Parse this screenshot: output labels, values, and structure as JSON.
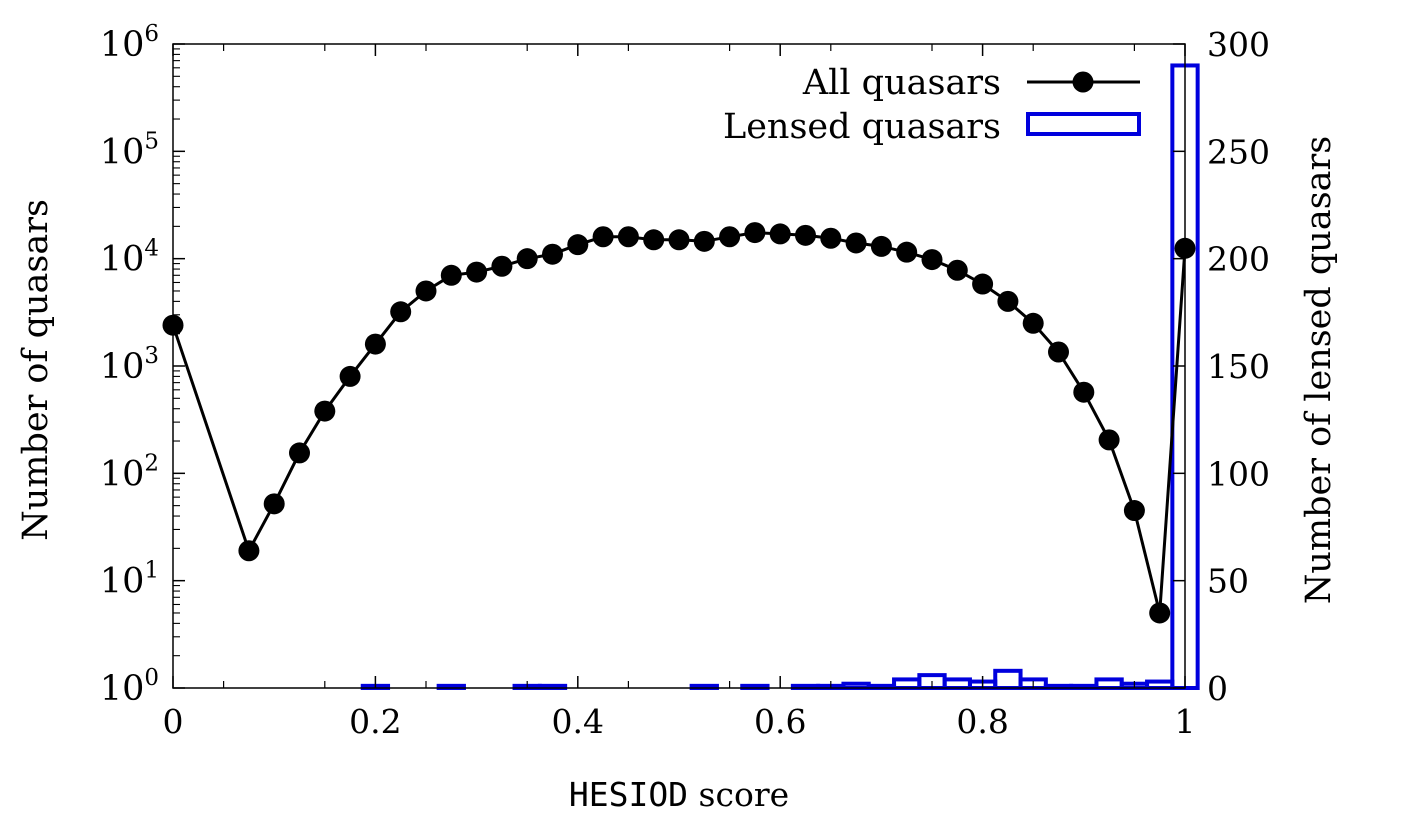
{
  "chart_data": {
    "type": "line+histogram",
    "xlabel_prefix": "HESIOD",
    "xlabel_suffix": " score",
    "ylabel_left": "Number of quasars",
    "ylabel_right": "Number of lensed quasars",
    "xlim": [
      0,
      1
    ],
    "ylim_left_log10": [
      0,
      6
    ],
    "ylim_right": [
      0,
      300
    ],
    "x_ticks": [
      {
        "value": 0,
        "label": "0"
      },
      {
        "value": 0.2,
        "label": "0.2"
      },
      {
        "value": 0.4,
        "label": "0.4"
      },
      {
        "value": 0.6,
        "label": "0.6"
      },
      {
        "value": 0.8,
        "label": "0.8"
      },
      {
        "value": 1,
        "label": "1"
      }
    ],
    "y_left_ticks": [
      {
        "exp": 0,
        "base": "10",
        "sup": "0"
      },
      {
        "exp": 1,
        "base": "10",
        "sup": "1"
      },
      {
        "exp": 2,
        "base": "10",
        "sup": "2"
      },
      {
        "exp": 3,
        "base": "10",
        "sup": "3"
      },
      {
        "exp": 4,
        "base": "10",
        "sup": "4"
      },
      {
        "exp": 5,
        "base": "10",
        "sup": "5"
      },
      {
        "exp": 6,
        "base": "10",
        "sup": "6"
      }
    ],
    "y_right_ticks": [
      {
        "value": 0,
        "label": "0"
      },
      {
        "value": 50,
        "label": "50"
      },
      {
        "value": 100,
        "label": "100"
      },
      {
        "value": 150,
        "label": "150"
      },
      {
        "value": 200,
        "label": "200"
      },
      {
        "value": 250,
        "label": "250"
      },
      {
        "value": 300,
        "label": "300"
      }
    ],
    "legend": {
      "position": "top-right",
      "all_label": "All quasars",
      "lensed_label": "Lensed quasars"
    },
    "colors": {
      "all": "#000000",
      "lensed": "#0000dd"
    },
    "series_all": {
      "name": "All quasars",
      "points": [
        {
          "x": 0.0,
          "y": 2400
        },
        {
          "x": 0.075,
          "y": 19
        },
        {
          "x": 0.1,
          "y": 52
        },
        {
          "x": 0.125,
          "y": 155
        },
        {
          "x": 0.15,
          "y": 380
        },
        {
          "x": 0.175,
          "y": 800
        },
        {
          "x": 0.2,
          "y": 1600
        },
        {
          "x": 0.225,
          "y": 3200
        },
        {
          "x": 0.25,
          "y": 5000
        },
        {
          "x": 0.275,
          "y": 7000
        },
        {
          "x": 0.3,
          "y": 7500
        },
        {
          "x": 0.325,
          "y": 8500
        },
        {
          "x": 0.35,
          "y": 10000
        },
        {
          "x": 0.375,
          "y": 11000
        },
        {
          "x": 0.4,
          "y": 13500
        },
        {
          "x": 0.425,
          "y": 16000
        },
        {
          "x": 0.45,
          "y": 16000
        },
        {
          "x": 0.475,
          "y": 15000
        },
        {
          "x": 0.5,
          "y": 15000
        },
        {
          "x": 0.525,
          "y": 14500
        },
        {
          "x": 0.55,
          "y": 16000
        },
        {
          "x": 0.575,
          "y": 17500
        },
        {
          "x": 0.6,
          "y": 17000
        },
        {
          "x": 0.625,
          "y": 16500
        },
        {
          "x": 0.65,
          "y": 15500
        },
        {
          "x": 0.675,
          "y": 14000
        },
        {
          "x": 0.7,
          "y": 13000
        },
        {
          "x": 0.725,
          "y": 11500
        },
        {
          "x": 0.75,
          "y": 9800
        },
        {
          "x": 0.775,
          "y": 7800
        },
        {
          "x": 0.8,
          "y": 5800
        },
        {
          "x": 0.825,
          "y": 4000
        },
        {
          "x": 0.85,
          "y": 2500
        },
        {
          "x": 0.875,
          "y": 1350
        },
        {
          "x": 0.9,
          "y": 570
        },
        {
          "x": 0.925,
          "y": 205
        },
        {
          "x": 0.95,
          "y": 45
        },
        {
          "x": 0.975,
          "y": 5
        },
        {
          "x": 1.0,
          "y": 12500
        }
      ]
    },
    "series_lensed": {
      "name": "Lensed quasars",
      "bin_width": 0.025,
      "bins": [
        {
          "x0": 0.1875,
          "count": 1
        },
        {
          "x0": 0.2625,
          "count": 1
        },
        {
          "x0": 0.3375,
          "count": 1
        },
        {
          "x0": 0.3625,
          "count": 1
        },
        {
          "x0": 0.5125,
          "count": 1
        },
        {
          "x0": 0.5625,
          "count": 1
        },
        {
          "x0": 0.6125,
          "count": 1
        },
        {
          "x0": 0.6375,
          "count": 1
        },
        {
          "x0": 0.6625,
          "count": 2
        },
        {
          "x0": 0.6875,
          "count": 1
        },
        {
          "x0": 0.7125,
          "count": 4
        },
        {
          "x0": 0.7375,
          "count": 6
        },
        {
          "x0": 0.7625,
          "count": 4
        },
        {
          "x0": 0.7875,
          "count": 3
        },
        {
          "x0": 0.8125,
          "count": 8
        },
        {
          "x0": 0.8375,
          "count": 4
        },
        {
          "x0": 0.8625,
          "count": 1
        },
        {
          "x0": 0.8875,
          "count": 1
        },
        {
          "x0": 0.9125,
          "count": 4
        },
        {
          "x0": 0.9375,
          "count": 2
        },
        {
          "x0": 0.9625,
          "count": 3
        },
        {
          "x0": 0.9875,
          "count": 290
        }
      ]
    }
  }
}
